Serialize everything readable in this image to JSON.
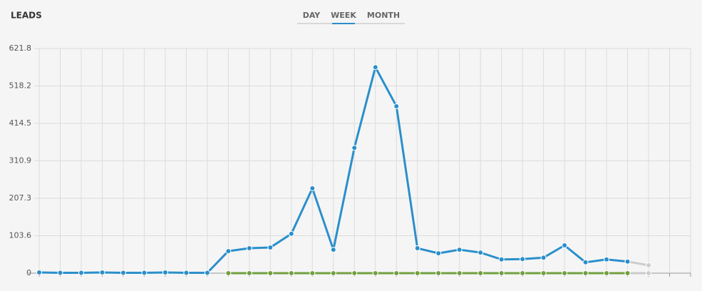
{
  "tabs": [
    "DAY",
    "WEEK",
    "MONTH"
  ],
  "active_tab": 1,
  "active_color": "#2b8fcb",
  "chart_data": {
    "type": "line",
    "title": "LEADS",
    "categories": [
      null,
      null,
      null,
      null,
      null,
      null,
      null,
      null,
      null,
      null,
      null,
      null,
      null,
      null,
      null,
      null,
      null,
      null,
      null,
      null,
      null,
      null,
      null,
      null,
      null,
      null,
      null,
      null,
      null,
      null,
      null,
      null
    ],
    "series": [
      {
        "color": "#2b8fcb",
        "values": [
          2,
          1,
          1,
          2,
          1,
          1,
          2,
          1,
          1,
          61,
          69,
          71,
          109,
          235,
          65,
          347,
          570,
          462,
          69,
          55,
          65,
          57,
          38,
          39,
          43,
          77,
          30,
          38,
          32,
          null,
          null,
          null
        ]
      },
      {
        "color": "#72a040",
        "values": [
          null,
          null,
          null,
          null,
          null,
          null,
          null,
          null,
          null,
          0,
          0,
          0,
          0,
          0,
          0,
          0,
          0,
          0,
          0,
          0,
          0,
          0,
          0,
          0,
          0,
          0,
          0,
          0,
          0,
          null,
          null,
          null
        ]
      },
      {
        "color": "#cccccc",
        "values": [
          null,
          null,
          null,
          null,
          null,
          null,
          null,
          null,
          null,
          null,
          null,
          null,
          null,
          null,
          null,
          null,
          null,
          null,
          null,
          null,
          null,
          null,
          null,
          null,
          null,
          null,
          null,
          null,
          32,
          22,
          null,
          null
        ]
      },
      {
        "color": "#cccccc",
        "values": [
          null,
          null,
          null,
          null,
          null,
          null,
          null,
          null,
          null,
          null,
          null,
          null,
          null,
          null,
          null,
          null,
          null,
          null,
          null,
          null,
          null,
          null,
          null,
          null,
          null,
          null,
          null,
          null,
          0,
          0,
          null,
          null
        ]
      }
    ],
    "ylim": [
      0,
      621.8
    ],
    "yticks": [
      0,
      103.6,
      207.3,
      310.9,
      414.5,
      518.2,
      621.8
    ],
    "grid": true
  }
}
